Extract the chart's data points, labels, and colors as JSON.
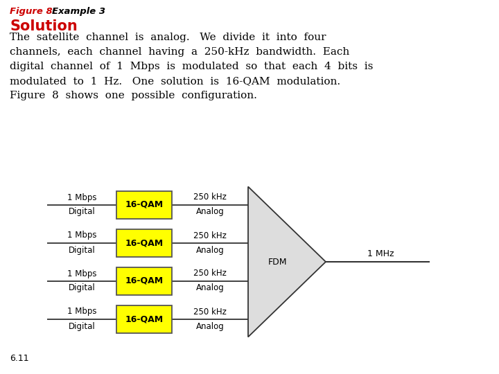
{
  "title_fig": "Figure 8:",
  "title_example": "  Example 3",
  "solution_label": "Solution",
  "body_lines": [
    "The  satellite  channel  is  analog.   We  divide  it  into  four",
    "channels,  each  channel  having  a  250-kHz  bandwidth.  Each",
    "digital  channel  of  1  Mbps  is  modulated  so  that  each  4  bits  is",
    "modulated  to  1  Hz.   One  solution  is  16-QAM  modulation.",
    "Figure  8  shows  one  possible  configuration."
  ],
  "channel_label": "16-QAM",
  "left_top_labels": [
    "1 Mbps",
    "1 Mbps",
    "1 Mbps",
    "1 Mbps"
  ],
  "left_bot_labels": [
    "Digital",
    "Digital",
    "Digital",
    "Digital"
  ],
  "right_top_labels": [
    "250 kHz",
    "250 kHz",
    "250 kHz",
    "250 kHz"
  ],
  "right_bot_labels": [
    "Analog",
    "Analog",
    "Analog",
    "Analog"
  ],
  "fdm_label": "FDM",
  "output_label": "1 MHz",
  "footer_label": "6.11",
  "box_color": "#FFFF00",
  "box_edge_color": "#555555",
  "fdm_fill": "#DDDDDD",
  "fdm_edge": "#333333",
  "line_color": "#333333",
  "bg_color": "#FFFFFF",
  "title_fig_color": "#CC0000",
  "solution_color": "#CC0000",
  "text_color": "#000000"
}
